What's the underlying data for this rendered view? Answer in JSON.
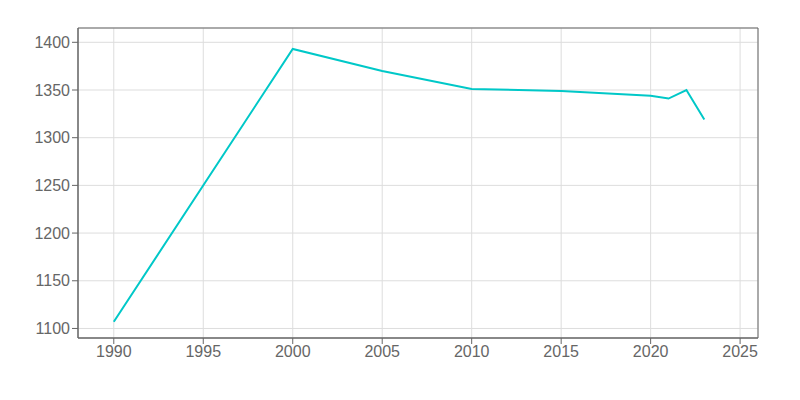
{
  "chart_data": {
    "type": "line",
    "x": [
      1990,
      2000,
      2005,
      2010,
      2015,
      2020,
      2021,
      2022,
      2023
    ],
    "values": [
      1107,
      1393,
      1370,
      1351,
      1349,
      1344,
      1341,
      1350,
      1319
    ],
    "color": "#00C8C8",
    "xlim": [
      1988,
      2026
    ],
    "ylim": [
      1090,
      1415
    ],
    "xticks": [
      1990,
      1995,
      2000,
      2005,
      2010,
      2015,
      2020,
      2025
    ],
    "yticks": [
      1100,
      1150,
      1200,
      1250,
      1300,
      1350,
      1400
    ],
    "grid": true
  }
}
